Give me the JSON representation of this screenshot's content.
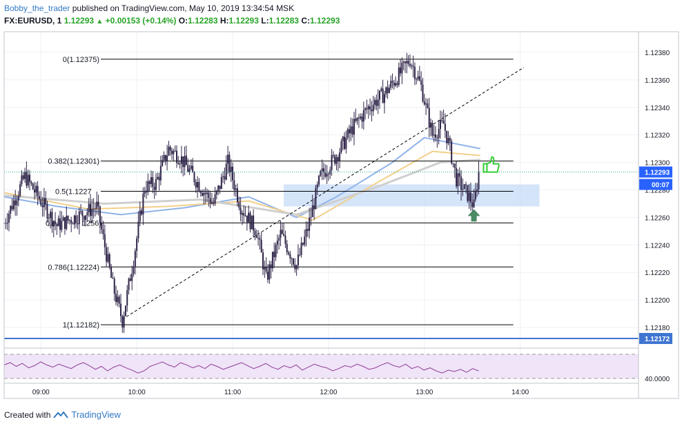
{
  "header": {
    "author": "Bobby_the_trader",
    "published_text": "published on TradingView.com, May 10, 2019 13:34:54 MSK",
    "symbol": "FX:EURUSD, 1",
    "last": "1.12293",
    "change": "+0.00153 (+0.14%)",
    "o_label": "O:",
    "o_value": "1.12283",
    "h_label": "H:",
    "h_value": "1.12293",
    "l_label": "L:",
    "l_value": "1.12283",
    "c_label": "C:",
    "c_value": "1.12293"
  },
  "footer": {
    "created_with": "Created with",
    "brand": "TradingView"
  },
  "colors": {
    "candle": "#2e2347",
    "grid": "#eef0f4",
    "fib": "#000000",
    "zone": "#c6dbf7",
    "ma_blue": "#8fb3e8",
    "ma_orange": "#f2cf8a",
    "ma_gray": "#cfcfcf",
    "rsi_line": "#8e3c96",
    "rsi_band": "#f0e4f8",
    "blue_level": "#3f74d1",
    "arrow": "#4a8a64",
    "thumb": "#33cc33"
  },
  "chart_data": {
    "type": "candlestick",
    "symbol": "FX:EURUSD",
    "interval": "1",
    "x_ticks": [
      "09:00",
      "10:00",
      "11:00",
      "12:00",
      "13:00",
      "14:00"
    ],
    "y_ticks": [
      "1.12380",
      "1.12360",
      "1.12340",
      "1.12320",
      "1.12300",
      "1.12280",
      "1.12260",
      "1.12240",
      "1.12220",
      "1.12200",
      "1.12180"
    ],
    "ylim": [
      1.12165,
      1.12395
    ],
    "xlim": [
      "08:37",
      "15:14"
    ],
    "price_path": [
      {
        "t": "08:37",
        "p": 1.12256
      },
      {
        "t": "08:50",
        "p": 1.1229
      },
      {
        "t": "09:00",
        "p": 1.12272
      },
      {
        "t": "09:10",
        "p": 1.12254
      },
      {
        "t": "09:25",
        "p": 1.12262
      },
      {
        "t": "09:35",
        "p": 1.12268
      },
      {
        "t": "09:45",
        "p": 1.1221
      },
      {
        "t": "09:51",
        "p": 1.12185
      },
      {
        "t": "09:58",
        "p": 1.1223
      },
      {
        "t": "10:05",
        "p": 1.12282
      },
      {
        "t": "10:12",
        "p": 1.12285
      },
      {
        "t": "10:20",
        "p": 1.1231
      },
      {
        "t": "10:27",
        "p": 1.12304
      },
      {
        "t": "10:40",
        "p": 1.12282
      },
      {
        "t": "10:48",
        "p": 1.1227
      },
      {
        "t": "10:57",
        "p": 1.123
      },
      {
        "t": "11:05",
        "p": 1.12268
      },
      {
        "t": "11:15",
        "p": 1.1225
      },
      {
        "t": "11:21",
        "p": 1.12215
      },
      {
        "t": "11:30",
        "p": 1.12248
      },
      {
        "t": "11:40",
        "p": 1.12225
      },
      {
        "t": "11:47",
        "p": 1.12252
      },
      {
        "t": "11:55",
        "p": 1.1229
      },
      {
        "t": "12:05",
        "p": 1.12305
      },
      {
        "t": "12:15",
        "p": 1.12325
      },
      {
        "t": "12:25",
        "p": 1.1234
      },
      {
        "t": "12:35",
        "p": 1.1235
      },
      {
        "t": "12:45",
        "p": 1.12365
      },
      {
        "t": "12:51",
        "p": 1.12375
      },
      {
        "t": "12:58",
        "p": 1.12355
      },
      {
        "t": "13:05",
        "p": 1.1232
      },
      {
        "t": "13:12",
        "p": 1.12328
      },
      {
        "t": "13:16",
        "p": 1.1231
      },
      {
        "t": "13:20",
        "p": 1.12288
      },
      {
        "t": "13:28",
        "p": 1.12275
      },
      {
        "t": "13:31",
        "p": 1.12268
      },
      {
        "t": "13:34",
        "p": 1.12293
      }
    ],
    "fib_levels": [
      {
        "label": "0(1.12375)",
        "value": 1.12375
      },
      {
        "label": "0.382(1.12301)",
        "value": 1.12301
      },
      {
        "label": "0.5(1.1227",
        "value": 1.12279
      },
      {
        "label": "0.6",
        "value": 1.12256
      },
      {
        "label": "1256)",
        "value": 1.12256
      },
      {
        "label": "0.786(1.12224)",
        "value": 1.12224
      },
      {
        "label": "1(1.12182)",
        "value": 1.12182
      }
    ],
    "support_zone": {
      "from": 1.12268,
      "to": 1.12284
    },
    "trendline": {
      "from": {
        "t": "09:51",
        "p": 1.12186
      },
      "to": {
        "t": "14:00",
        "p": 1.12369
      }
    },
    "price_label": "1.12293",
    "countdown": "00:07",
    "level_label": "1.12172",
    "level_value": 1.12172,
    "moving_averages": [
      {
        "color": "blue",
        "points": [
          {
            "t": "08:37",
            "p": 1.12275
          },
          {
            "t": "09:10",
            "p": 1.12268
          },
          {
            "t": "09:50",
            "p": 1.12262
          },
          {
            "t": "10:30",
            "p": 1.12267
          },
          {
            "t": "11:10",
            "p": 1.12275
          },
          {
            "t": "11:40",
            "p": 1.1226
          },
          {
            "t": "12:05",
            "p": 1.12275
          },
          {
            "t": "12:40",
            "p": 1.123
          },
          {
            "t": "13:00",
            "p": 1.12318
          },
          {
            "t": "13:35",
            "p": 1.1231
          }
        ]
      },
      {
        "color": "orange",
        "points": [
          {
            "t": "08:37",
            "p": 1.12278
          },
          {
            "t": "09:30",
            "p": 1.12266
          },
          {
            "t": "10:20",
            "p": 1.12268
          },
          {
            "t": "11:10",
            "p": 1.12272
          },
          {
            "t": "11:50",
            "p": 1.12258
          },
          {
            "t": "12:30",
            "p": 1.12285
          },
          {
            "t": "13:05",
            "p": 1.12308
          },
          {
            "t": "13:35",
            "p": 1.12305
          }
        ]
      },
      {
        "color": "gray",
        "points": [
          {
            "t": "08:37",
            "p": 1.12276
          },
          {
            "t": "09:40",
            "p": 1.1227
          },
          {
            "t": "10:40",
            "p": 1.12273
          },
          {
            "t": "11:40",
            "p": 1.12262
          },
          {
            "t": "12:30",
            "p": 1.12282
          },
          {
            "t": "13:10",
            "p": 1.123
          },
          {
            "t": "13:35",
            "p": 1.12302
          }
        ]
      }
    ],
    "rsi": {
      "label": "40.0000",
      "level": 40,
      "ylim": [
        30,
        70
      ],
      "values": [
        52,
        55,
        50,
        54,
        48,
        51,
        56,
        52,
        49,
        53,
        50,
        47,
        52,
        55,
        51,
        46,
        50,
        44,
        49,
        52,
        48,
        45,
        41,
        44,
        50,
        53,
        56,
        52,
        49,
        55,
        52,
        48,
        51,
        47,
        53,
        50,
        46,
        49,
        52,
        55,
        51,
        47,
        50,
        54,
        49,
        46,
        51,
        48,
        52,
        45,
        49,
        53,
        50,
        48,
        44,
        47,
        51,
        49,
        53,
        50,
        46,
        48,
        52,
        55,
        51,
        49,
        53,
        47,
        50,
        45,
        48,
        44,
        41,
        45,
        43,
        46,
        42,
        47,
        44
      ]
    }
  }
}
